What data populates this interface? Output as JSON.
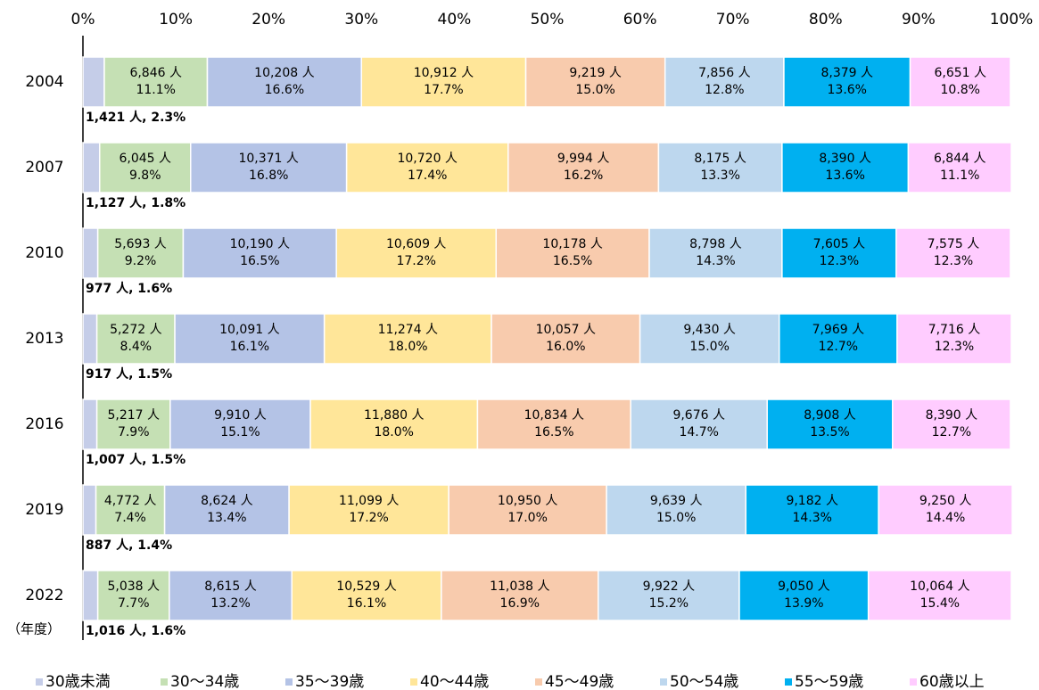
{
  "chart_data": {
    "type": "stacked-bar-horizontal",
    "categories": [
      "2004",
      "2007",
      "2010",
      "2013",
      "2016",
      "2019",
      "2022"
    ],
    "annotation": "（年度）",
    "xlim": [
      0,
      100
    ],
    "xticks": [
      {
        "value": 0,
        "label": "0%"
      },
      {
        "value": 10,
        "label": "10%"
      },
      {
        "value": 20,
        "label": "20%"
      },
      {
        "value": 30,
        "label": "30%"
      },
      {
        "value": 40,
        "label": "40%"
      },
      {
        "value": 50,
        "label": "50%"
      },
      {
        "value": 60,
        "label": "60%"
      },
      {
        "value": 70,
        "label": "70%"
      },
      {
        "value": 80,
        "label": "80%"
      },
      {
        "value": 90,
        "label": "90%"
      },
      {
        "value": 100,
        "label": "100%"
      }
    ],
    "legend": "bottom",
    "series": [
      {
        "name": "30歳未満",
        "color": "#c5cde8",
        "values": [
          2.3,
          1.8,
          1.6,
          1.5,
          1.5,
          1.4,
          1.6
        ],
        "counts": [
          1421,
          1127,
          977,
          917,
          1007,
          887,
          1016
        ],
        "value_labels": [
          "1,421 人, 2.3%",
          "1,127 人, 1.8%",
          "977 人, 1.6%",
          "917 人, 1.5%",
          "1,007 人, 1.5%",
          "887 人, 1.4%",
          "1,016 人, 1.6%"
        ]
      },
      {
        "name": "30～34歳",
        "color": "#c5e0b4",
        "values": [
          11.1,
          9.8,
          9.2,
          8.4,
          7.9,
          7.4,
          7.7
        ],
        "counts": [
          6846,
          6045,
          5693,
          5272,
          5217,
          4772,
          5038
        ],
        "count_labels": [
          "6,846 人",
          "6,045 人",
          "5,693 人",
          "5,272 人",
          "5,217 人",
          "4,772 人",
          "5,038 人"
        ],
        "value_labels": [
          "11.1%",
          "9.8%",
          "9.2%",
          "8.4%",
          "7.9%",
          "7.4%",
          "7.7%"
        ]
      },
      {
        "name": "35～39歳",
        "color": "#b4c3e6",
        "values": [
          16.6,
          16.8,
          16.5,
          16.1,
          15.1,
          13.4,
          13.2
        ],
        "counts": [
          10208,
          10371,
          10190,
          10091,
          9910,
          8624,
          8615
        ],
        "count_labels": [
          "10,208 人",
          "10,371 人",
          "10,190 人",
          "10,091 人",
          "9,910 人",
          "8,624 人",
          "8,615 人"
        ],
        "value_labels": [
          "16.6%",
          "16.8%",
          "16.5%",
          "16.1%",
          "15.1%",
          "13.4%",
          "13.2%"
        ]
      },
      {
        "name": "40～44歳",
        "color": "#ffe699",
        "values": [
          17.7,
          17.4,
          17.2,
          18.0,
          18.0,
          17.2,
          16.1
        ],
        "counts": [
          10912,
          10720,
          10609,
          11274,
          11880,
          11099,
          10529
        ],
        "count_labels": [
          "10,912 人",
          "10,720 人",
          "10,609 人",
          "11,274 人",
          "11,880 人",
          "11,099 人",
          "10,529 人"
        ],
        "value_labels": [
          "17.7%",
          "17.4%",
          "17.2%",
          "18.0%",
          "18.0%",
          "17.2%",
          "16.1%"
        ]
      },
      {
        "name": "45～49歳",
        "color": "#f8cbad",
        "values": [
          15.0,
          16.2,
          16.5,
          16.0,
          16.5,
          17.0,
          16.9
        ],
        "counts": [
          9219,
          9994,
          10178,
          10057,
          10834,
          10950,
          11038
        ],
        "count_labels": [
          "9,219 人",
          "9,994 人",
          "10,178 人",
          "10,057 人",
          "10,834 人",
          "10,950 人",
          "11,038 人"
        ],
        "value_labels": [
          "15.0%",
          "16.2%",
          "16.5%",
          "16.0%",
          "16.5%",
          "17.0%",
          "16.9%"
        ]
      },
      {
        "name": "50～54歳",
        "color": "#bdd7ee",
        "values": [
          12.8,
          13.3,
          14.3,
          15.0,
          14.7,
          15.0,
          15.2
        ],
        "counts": [
          7856,
          8175,
          8798,
          9430,
          9676,
          9639,
          9922
        ],
        "count_labels": [
          "7,856 人",
          "8,175 人",
          "8,798 人",
          "9,430 人",
          "9,676 人",
          "9,639 人",
          "9,922 人"
        ],
        "value_labels": [
          "12.8%",
          "13.3%",
          "14.3%",
          "15.0%",
          "14.7%",
          "15.0%",
          "15.2%"
        ]
      },
      {
        "name": "55～59歳",
        "color": "#00b0f0",
        "values": [
          13.6,
          13.6,
          12.3,
          12.7,
          13.5,
          14.3,
          13.9
        ],
        "counts": [
          8379,
          8390,
          7605,
          7969,
          8908,
          9182,
          9050
        ],
        "count_labels": [
          "8,379 人",
          "8,390 人",
          "7,605 人",
          "7,969 人",
          "8,908 人",
          "9,182 人",
          "9,050 人"
        ],
        "value_labels": [
          "13.6%",
          "13.6%",
          "12.3%",
          "12.7%",
          "13.5%",
          "14.3%",
          "13.9%"
        ]
      },
      {
        "name": "60歳以上",
        "color": "#ffccff",
        "values": [
          10.8,
          11.1,
          12.3,
          12.3,
          12.7,
          14.4,
          15.4
        ],
        "counts": [
          6651,
          6844,
          7575,
          7716,
          8390,
          9250,
          10064
        ],
        "count_labels": [
          "6,651 人",
          "6,844 人",
          "7,575 人",
          "7,716 人",
          "8,390 人",
          "9,250 人",
          "10,064 人"
        ],
        "value_labels": [
          "10.8%",
          "11.1%",
          "12.3%",
          "12.3%",
          "12.7%",
          "14.4%",
          "15.4%"
        ]
      }
    ]
  }
}
